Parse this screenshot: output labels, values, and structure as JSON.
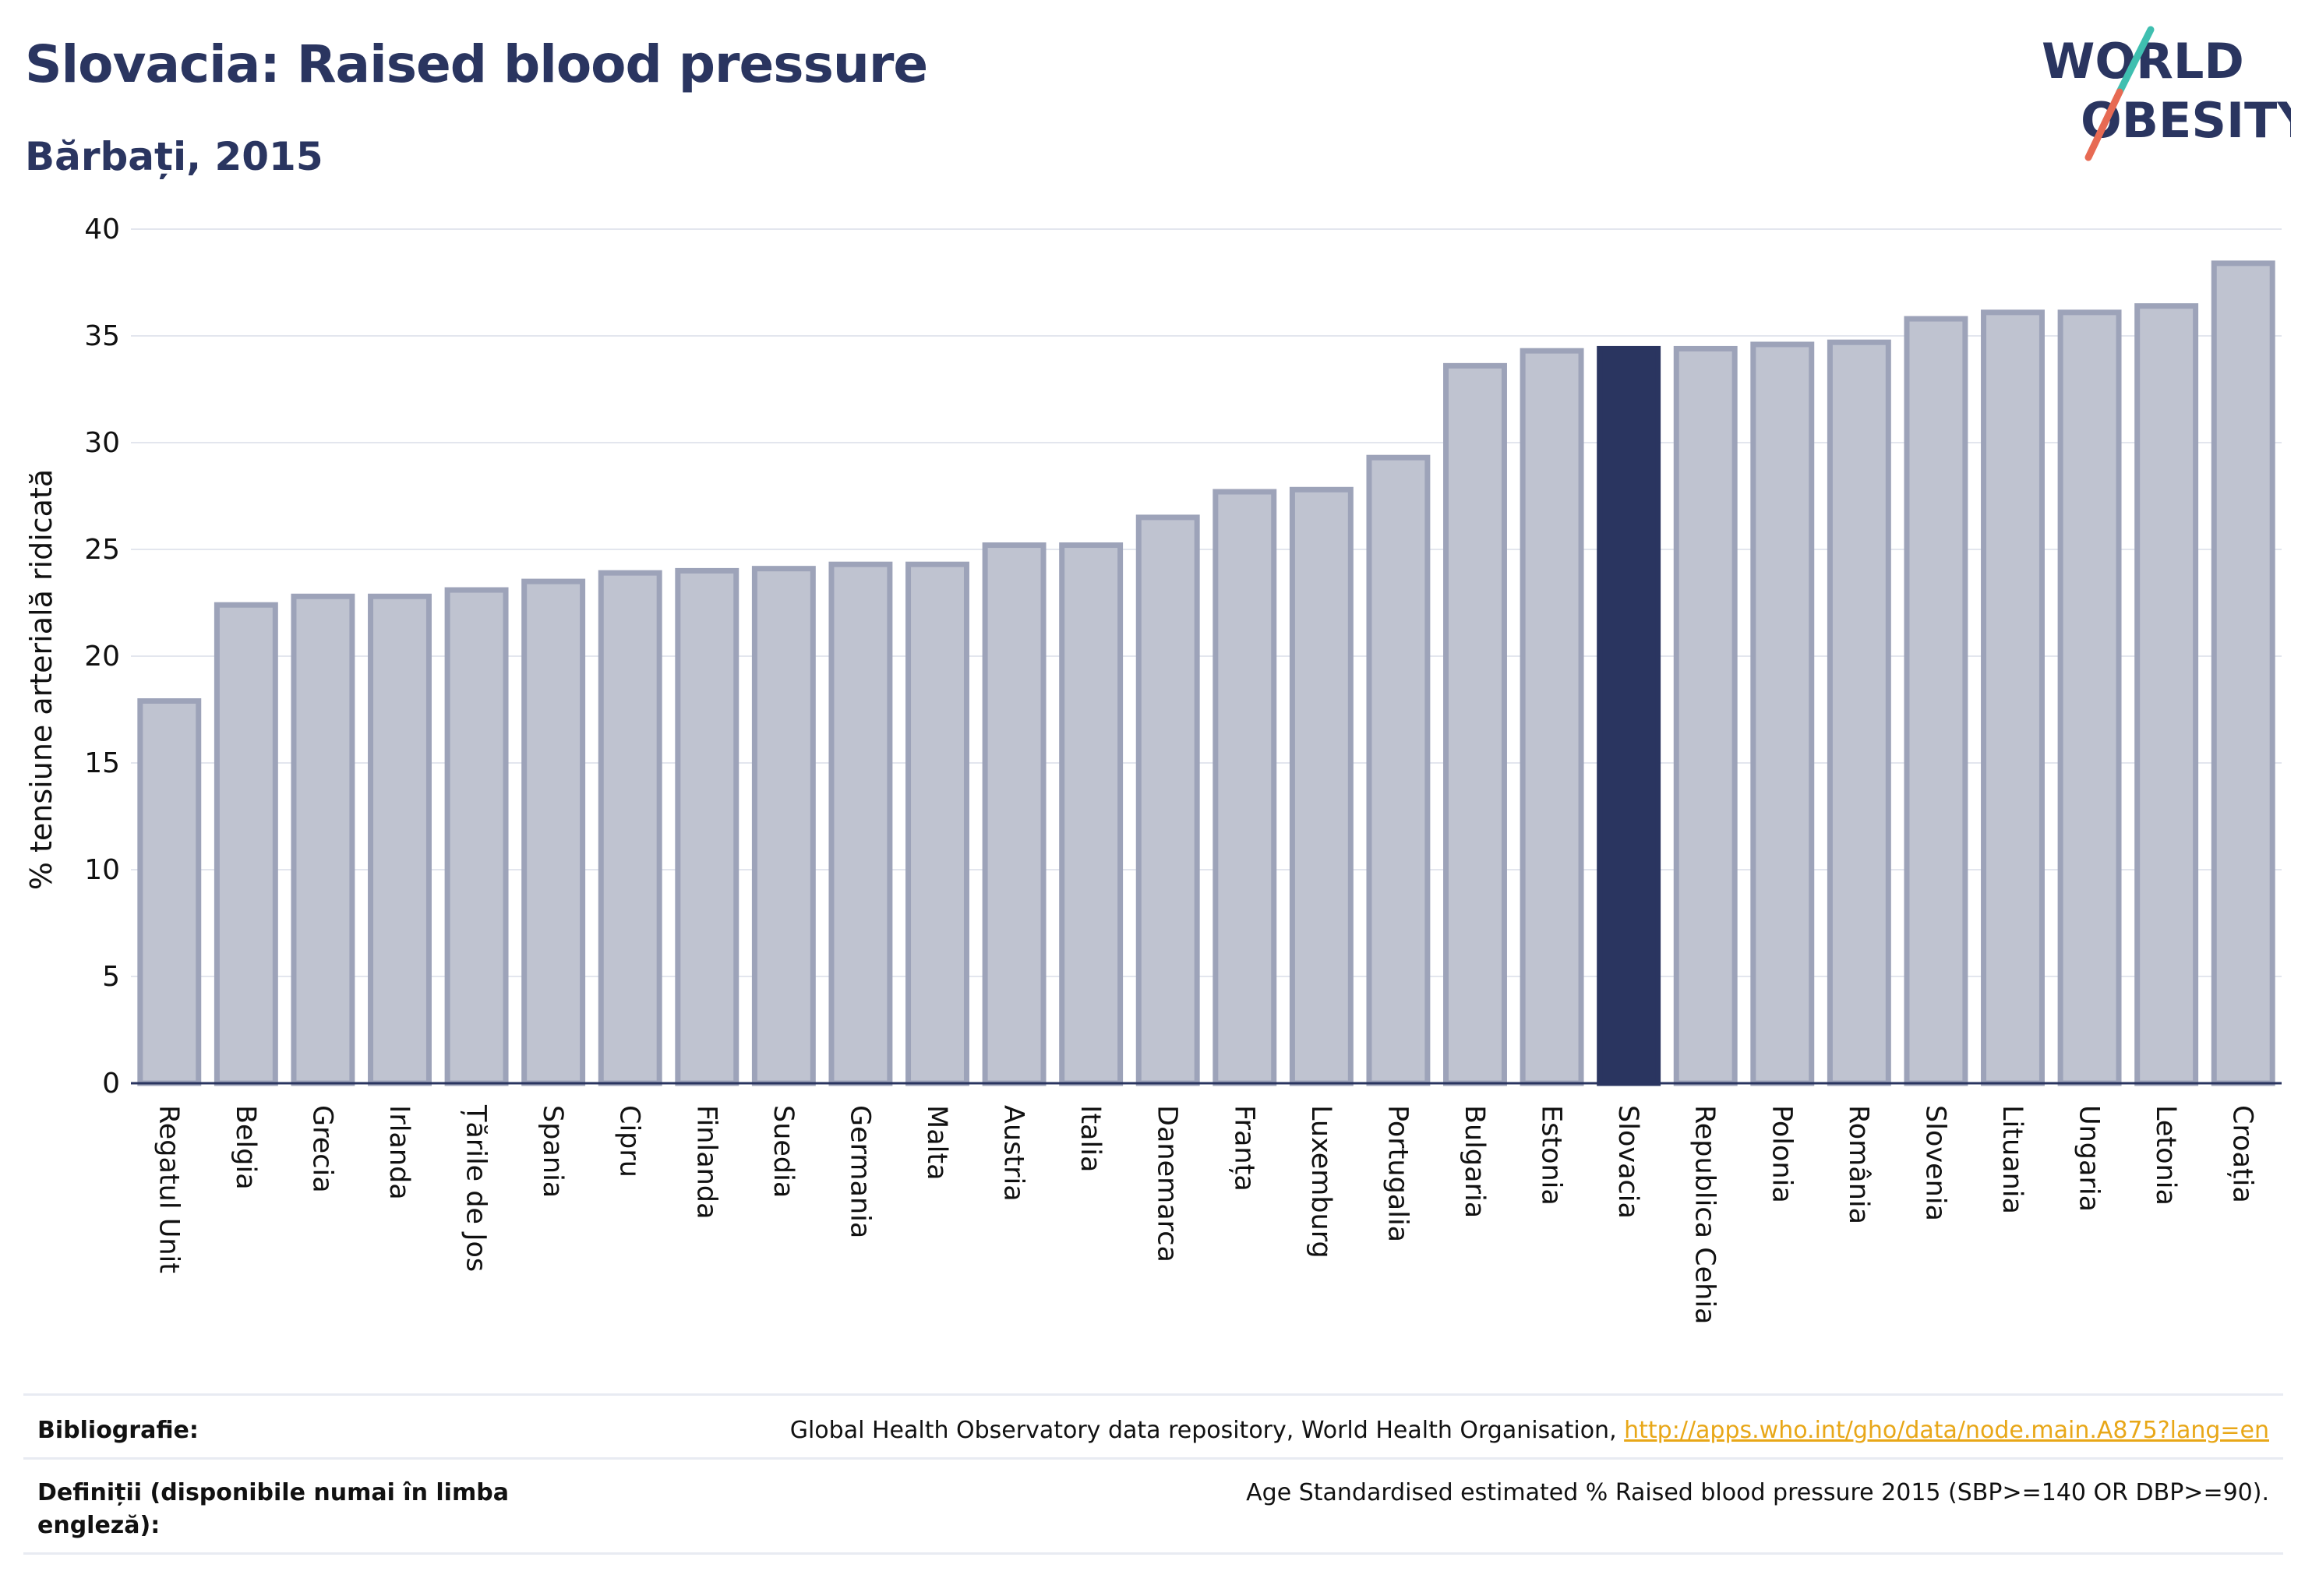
{
  "header": {
    "title": "Slovacia: Raised blood pressure",
    "subtitle": "Bărbați, 2015"
  },
  "logo": {
    "line1": "WORLD",
    "line2": "OBESITY",
    "colors": {
      "text": "#2a3560",
      "slash_top": "#3fbfb0",
      "slash_bottom": "#e76a53"
    }
  },
  "colors": {
    "bar_default": "#bfc3d0",
    "bar_border": "#9da3b9",
    "bar_highlight": "#2a3560",
    "grid": "#e3e6ee",
    "axis": "#2a3560"
  },
  "chart_data": {
    "type": "bar",
    "ylabel": "% tensiune arterială ridicată",
    "xlabel": "",
    "ylim": [
      0,
      40
    ],
    "yticks": [
      0,
      5,
      10,
      15,
      20,
      25,
      30,
      35,
      40
    ],
    "grid": true,
    "highlight": "Slovacia",
    "categories": [
      "Regatul Unit",
      "Belgia",
      "Grecia",
      "Irlanda",
      "Țările de Jos",
      "Spania",
      "Cipru",
      "Finlanda",
      "Suedia",
      "Germania",
      "Malta",
      "Austria",
      "Italia",
      "Danemarca",
      "Franța",
      "Luxemburg",
      "Portugalia",
      "Bulgaria",
      "Estonia",
      "Slovacia",
      "Republica Cehia",
      "Polonia",
      "România",
      "Slovenia",
      "Lituania",
      "Ungaria",
      "Letonia",
      "Croația"
    ],
    "values": [
      17.9,
      22.4,
      22.8,
      22.8,
      23.1,
      23.5,
      23.9,
      24.0,
      24.1,
      24.3,
      24.3,
      25.2,
      25.2,
      26.5,
      27.7,
      27.8,
      29.3,
      33.6,
      34.3,
      34.4,
      34.4,
      34.6,
      34.7,
      35.8,
      36.1,
      36.1,
      36.4,
      38.4
    ]
  },
  "footer": {
    "bibliography_label": "Bibliografie:",
    "bibliography_text": "Global Health Observatory data repository, World Health Organisation, ",
    "bibliography_link": "http://apps.who.int/gho/data/node.main.A875?lang=en",
    "definitions_label": "Definiții (disponibile numai în limba engleză):",
    "definitions_text": "Age Standardised estimated % Raised blood pressure 2015 (SBP>=140 OR DBP>=90)."
  }
}
